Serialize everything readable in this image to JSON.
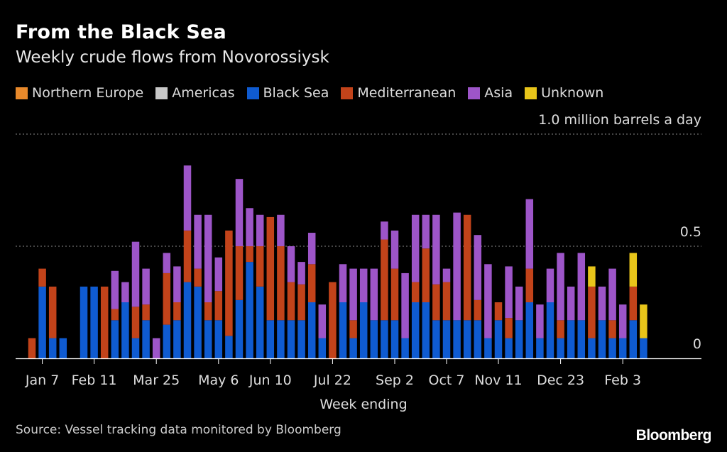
{
  "header": {
    "title": "From the Black Sea",
    "subtitle": "Weekly crude flows from Novorossiysk"
  },
  "footer": {
    "source": "Source: Vessel tracking data monitored by Bloomberg",
    "brand": "Bloomberg"
  },
  "chart_data": {
    "type": "bar",
    "stacked": true,
    "xlabel": "Week ending",
    "ylabel": "",
    "unit_label": "1.0 million barrels a day",
    "ylim": [
      0,
      1.0
    ],
    "y_ticks": [
      {
        "value": 0,
        "label": "0"
      },
      {
        "value": 0.5,
        "label": "0.5"
      },
      {
        "value": 1.0,
        "label": "1.0 million barrels a day"
      }
    ],
    "x_tick_labels": [
      {
        "index": 1,
        "label": "Jan 7"
      },
      {
        "index": 6,
        "label": "Feb 11"
      },
      {
        "index": 12,
        "label": "Mar 25"
      },
      {
        "index": 18,
        "label": "May 6"
      },
      {
        "index": 23,
        "label": "Jun 10"
      },
      {
        "index": 29,
        "label": "Jul 22"
      },
      {
        "index": 35,
        "label": "Sep 2"
      },
      {
        "index": 40,
        "label": "Oct 7"
      },
      {
        "index": 45,
        "label": "Nov 11"
      },
      {
        "index": 51,
        "label": "Dec 23"
      },
      {
        "index": 57,
        "label": "Feb 3"
      }
    ],
    "legend_placement": "top",
    "grid": true,
    "series": [
      {
        "name": "Northern Europe",
        "color": "#e8892b",
        "values": [
          0,
          0,
          0,
          0,
          0,
          0,
          0,
          0,
          0,
          0,
          0,
          0,
          0,
          0,
          0,
          0,
          0,
          0,
          0,
          0,
          0,
          0,
          0,
          0,
          0,
          0,
          0,
          0,
          0,
          0,
          0,
          0,
          0,
          0,
          0,
          0,
          0,
          0,
          0,
          0,
          0,
          0,
          0,
          0,
          0,
          0,
          0,
          0,
          0,
          0,
          0,
          0,
          0,
          0,
          0,
          0,
          0,
          0,
          0,
          0
        ]
      },
      {
        "name": "Americas",
        "color": "#c8c8c8",
        "values": [
          0,
          0,
          0,
          0,
          0,
          0,
          0,
          0,
          0,
          0,
          0,
          0,
          0,
          0,
          0,
          0,
          0,
          0,
          0,
          0,
          0,
          0,
          0,
          0,
          0,
          0,
          0,
          0,
          0,
          0,
          0,
          0,
          0,
          0,
          0,
          0,
          0,
          0,
          0,
          0,
          0,
          0,
          0,
          0,
          0,
          0,
          0,
          0,
          0,
          0,
          0,
          0,
          0,
          0,
          0,
          0,
          0,
          0,
          0,
          0
        ]
      },
      {
        "name": "Black Sea",
        "color": "#0f5bd1",
        "values": [
          0,
          0.32,
          0.09,
          0.09,
          0,
          0.32,
          0.32,
          0,
          0.17,
          0.25,
          0.09,
          0.17,
          0,
          0.15,
          0.17,
          0.34,
          0.32,
          0.17,
          0.17,
          0.1,
          0.26,
          0.43,
          0.32,
          0.17,
          0.17,
          0.17,
          0.17,
          0.25,
          0.09,
          0,
          0.25,
          0.09,
          0.25,
          0.17,
          0.17,
          0.17,
          0.09,
          0.25,
          0.25,
          0.17,
          0.17,
          0.17,
          0.17,
          0.17,
          0.09,
          0.17,
          0.09,
          0.17,
          0.25,
          0.09,
          0.25,
          0.09,
          0.17,
          0.17,
          0.09,
          0.17,
          0.09,
          0.09,
          0.17,
          0.09
        ]
      },
      {
        "name": "Mediterranean",
        "color": "#c2431a",
        "values": [
          0.09,
          0.08,
          0.23,
          0,
          0,
          0,
          0,
          0.32,
          0.05,
          0,
          0.14,
          0.07,
          0,
          0.23,
          0.08,
          0.23,
          0.08,
          0.08,
          0.13,
          0.47,
          0.24,
          0.07,
          0.18,
          0.46,
          0.33,
          0.17,
          0.16,
          0.17,
          0,
          0.34,
          0,
          0.08,
          0,
          0,
          0.36,
          0.23,
          0,
          0.09,
          0.24,
          0.16,
          0.17,
          0,
          0.47,
          0.09,
          0,
          0.08,
          0.09,
          0,
          0.15,
          0,
          0,
          0.08,
          0,
          0,
          0.23,
          0,
          0.08,
          0,
          0.15,
          0
        ]
      },
      {
        "name": "Asia",
        "color": "#9d55c8",
        "values": [
          0,
          0,
          0,
          0,
          0,
          0,
          0,
          0,
          0.17,
          0.09,
          0.29,
          0.16,
          0.09,
          0.09,
          0.16,
          0.29,
          0.24,
          0.39,
          0.15,
          0,
          0.3,
          0.17,
          0.14,
          0,
          0.14,
          0.16,
          0.1,
          0.14,
          0.15,
          0,
          0.17,
          0.23,
          0.15,
          0.23,
          0.08,
          0.17,
          0.29,
          0.3,
          0.15,
          0.31,
          0.06,
          0.48,
          0,
          0.29,
          0.33,
          0,
          0.23,
          0.15,
          0.31,
          0.15,
          0.15,
          0.3,
          0.15,
          0.3,
          0,
          0.15,
          0.23,
          0.15,
          0,
          0
        ]
      },
      {
        "name": "Unknown",
        "color": "#e8c51a",
        "values": [
          0,
          0,
          0,
          0,
          0,
          0,
          0,
          0,
          0,
          0,
          0,
          0,
          0,
          0,
          0,
          0,
          0,
          0,
          0,
          0,
          0,
          0,
          0,
          0,
          0,
          0,
          0,
          0,
          0,
          0,
          0,
          0,
          0,
          0,
          0,
          0,
          0,
          0,
          0,
          0,
          0,
          0,
          0,
          0,
          0,
          0,
          0,
          0,
          0,
          0,
          0,
          0,
          0,
          0,
          0.09,
          0,
          0,
          0,
          0.15,
          0.15
        ]
      }
    ]
  }
}
